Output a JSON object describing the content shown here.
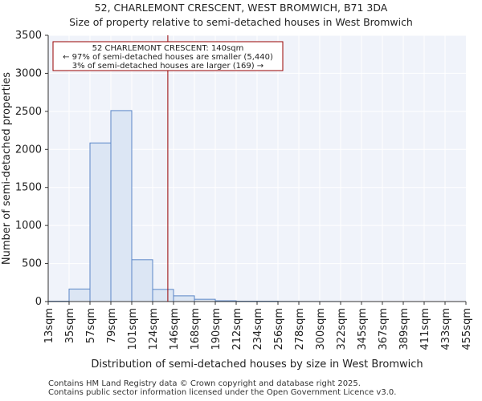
{
  "chart_data": {
    "type": "bar",
    "title": "52, CHARLEMONT CRESCENT, WEST BROMWICH, B71 3DA",
    "subtitle": "Size of property relative to semi-detached houses in West Bromwich",
    "xlabel": "Distribution of semi-detached houses by size in West Bromwich",
    "ylabel": "Number of semi-detached properties",
    "categories": [
      "13sqm",
      "35sqm",
      "57sqm",
      "79sqm",
      "101sqm",
      "124sqm",
      "146sqm",
      "168sqm",
      "190sqm",
      "212sqm",
      "234sqm",
      "256sqm",
      "278sqm",
      "300sqm",
      "322sqm",
      "345sqm",
      "367sqm",
      "389sqm",
      "411sqm",
      "433sqm",
      "455sqm"
    ],
    "values": [
      5,
      165,
      2085,
      2510,
      550,
      160,
      75,
      30,
      10,
      5,
      5,
      2,
      1,
      1,
      0,
      0,
      0,
      0,
      0,
      0,
      0
    ],
    "ylim": [
      0,
      3500
    ],
    "yticks": [
      0,
      500,
      1000,
      1500,
      2000,
      2500,
      3000,
      3500
    ],
    "grid": true,
    "marker": {
      "value": 140,
      "label_lines": [
        "52 CHARLEMONT CRESCENT: 140sqm",
        "← 97% of semi-detached houses are smaller (5,440)",
        "3% of semi-detached houses are larger (169) →"
      ]
    },
    "bar_color": "#dce6f4",
    "bar_edge": "#5b87c7",
    "marker_color": "#990000"
  },
  "footer": {
    "line1": "Contains HM Land Registry data © Crown copyright and database right 2025.",
    "line2": "Contains public sector information licensed under the Open Government Licence v3.0."
  }
}
